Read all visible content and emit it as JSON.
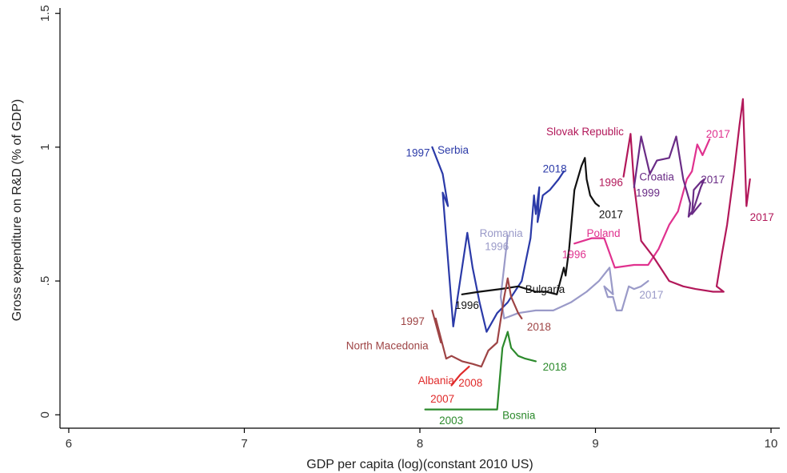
{
  "chart_data": {
    "type": "line",
    "xlabel": "GDP per capita (log)(constant 2010 US)",
    "ylabel": "Gross expenditure on R&D (% of GDP)",
    "xlim": [
      5.95,
      10.05
    ],
    "ylim": [
      -0.05,
      1.52
    ],
    "xticks": [
      {
        "value": 6,
        "label": "6"
      },
      {
        "value": 7,
        "label": "7"
      },
      {
        "value": 8,
        "label": "8"
      },
      {
        "value": 9,
        "label": "9"
      },
      {
        "value": 10,
        "label": "10"
      }
    ],
    "yticks": [
      {
        "value": 0,
        "label": "0"
      },
      {
        "value": 0.5,
        "label": ".5"
      },
      {
        "value": 1,
        "label": "1"
      },
      {
        "value": 1.5,
        "label": "1.5"
      }
    ],
    "grid": false,
    "legend": "none",
    "series": [
      {
        "name": "Serbia",
        "color": "#2b3aa8",
        "x": [
          8.07,
          8.13,
          8.16,
          8.13,
          8.19,
          8.27,
          8.3,
          8.34,
          8.38,
          8.44,
          8.5,
          8.58,
          8.63,
          8.65,
          8.66,
          8.68,
          8.67,
          8.7,
          8.74,
          8.79,
          8.82
        ],
        "y": [
          1.0,
          0.9,
          0.78,
          0.83,
          0.33,
          0.68,
          0.55,
          0.42,
          0.31,
          0.38,
          0.42,
          0.5,
          0.66,
          0.82,
          0.75,
          0.85,
          0.72,
          0.82,
          0.84,
          0.88,
          0.91
        ]
      },
      {
        "name": "Romania",
        "color": "#9a9ac8",
        "x": [
          8.5,
          8.46,
          8.48,
          8.56,
          8.66,
          8.76,
          8.86,
          8.95,
          9.02,
          9.08,
          9.1,
          9.05,
          9.07,
          9.1,
          9.12,
          9.15,
          9.19,
          9.22,
          9.26,
          9.3
        ],
        "y": [
          0.67,
          0.44,
          0.36,
          0.38,
          0.39,
          0.39,
          0.42,
          0.46,
          0.5,
          0.55,
          0.45,
          0.48,
          0.44,
          0.44,
          0.39,
          0.39,
          0.48,
          0.47,
          0.48,
          0.5
        ]
      },
      {
        "name": "Bulgaria",
        "color": "#111111",
        "x": [
          8.24,
          8.34,
          8.46,
          8.56,
          8.66,
          8.72,
          8.78,
          8.82,
          8.83,
          8.85,
          8.88,
          8.92,
          8.94,
          8.95,
          8.97,
          9.0,
          9.02
        ],
        "y": [
          0.45,
          0.46,
          0.47,
          0.48,
          0.46,
          0.46,
          0.45,
          0.55,
          0.52,
          0.62,
          0.84,
          0.93,
          0.96,
          0.88,
          0.82,
          0.79,
          0.78
        ]
      },
      {
        "name": "North Macedonia",
        "color": "#9e4445",
        "x": [
          8.07,
          8.12,
          8.09,
          8.15,
          8.18,
          8.24,
          8.3,
          8.35,
          8.39,
          8.44,
          8.48,
          8.5,
          8.52,
          8.56,
          8.58
        ],
        "y": [
          0.39,
          0.27,
          0.36,
          0.21,
          0.22,
          0.2,
          0.19,
          0.18,
          0.24,
          0.27,
          0.44,
          0.51,
          0.44,
          0.38,
          0.36
        ]
      },
      {
        "name": "Bosnia",
        "color": "#2c8a2c",
        "x": [
          8.03,
          8.18,
          8.28,
          8.38,
          8.44,
          8.47,
          8.5,
          8.52,
          8.56,
          8.6,
          8.66
        ],
        "y": [
          0.02,
          0.02,
          0.02,
          0.02,
          0.02,
          0.25,
          0.31,
          0.25,
          0.22,
          0.21,
          0.2
        ]
      },
      {
        "name": "Albania",
        "color": "#e02a2a",
        "x": [
          8.18,
          8.23,
          8.28
        ],
        "y": [
          0.11,
          0.15,
          0.18
        ]
      },
      {
        "name": "Poland",
        "color": "#e0328f",
        "x": [
          8.88,
          8.98,
          9.05,
          9.11,
          9.22,
          9.3,
          9.36,
          9.42,
          9.47,
          9.52,
          9.55,
          9.58,
          9.61,
          9.65
        ],
        "y": [
          0.64,
          0.66,
          0.66,
          0.55,
          0.56,
          0.56,
          0.62,
          0.71,
          0.76,
          0.88,
          0.91,
          1.01,
          0.97,
          1.03
        ]
      },
      {
        "name": "Slovak Republic",
        "color": "#b2185a",
        "x": [
          9.16,
          9.2,
          9.22,
          9.26,
          9.33,
          9.42,
          9.5,
          9.57,
          9.67,
          9.73,
          9.69,
          9.72,
          9.75,
          9.79,
          9.82,
          9.84,
          9.86,
          9.88
        ],
        "y": [
          0.89,
          1.05,
          0.86,
          0.65,
          0.59,
          0.5,
          0.48,
          0.47,
          0.46,
          0.46,
          0.48,
          0.6,
          0.71,
          0.91,
          1.08,
          1.18,
          0.78,
          0.88
        ]
      },
      {
        "name": "Croatia",
        "color": "#6a2c86",
        "x": [
          9.22,
          9.26,
          9.31,
          9.35,
          9.42,
          9.46,
          9.5,
          9.54,
          9.53,
          9.56,
          9.6,
          9.62,
          9.6,
          9.56,
          9.55,
          9.6
        ],
        "y": [
          0.85,
          1.04,
          0.9,
          0.95,
          0.96,
          1.04,
          0.88,
          0.79,
          0.74,
          0.77,
          0.85,
          0.88,
          0.87,
          0.84,
          0.75,
          0.79
        ]
      }
    ],
    "annotations": [
      {
        "text": "Serbia",
        "x": 8.1,
        "y": 0.99,
        "color": "#2b3aa8"
      },
      {
        "text": "1997",
        "x": 7.92,
        "y": 0.98,
        "color": "#2b3aa8"
      },
      {
        "text": "2018",
        "x": 8.7,
        "y": 0.92,
        "color": "#2b3aa8"
      },
      {
        "text": "Romania",
        "x": 8.34,
        "y": 0.68,
        "color": "#9a9ac8"
      },
      {
        "text": "1996",
        "x": 8.37,
        "y": 0.63,
        "color": "#9a9ac8"
      },
      {
        "text": "2017",
        "x": 9.25,
        "y": 0.45,
        "color": "#9a9ac8"
      },
      {
        "text": "Bulgaria",
        "x": 8.6,
        "y": 0.47,
        "color": "#111111"
      },
      {
        "text": "1996",
        "x": 8.2,
        "y": 0.41,
        "color": "#111111"
      },
      {
        "text": "2017",
        "x": 9.02,
        "y": 0.75,
        "color": "#111111"
      },
      {
        "text": "1997",
        "x": 7.89,
        "y": 0.35,
        "color": "#9e4445"
      },
      {
        "text": "North Macedonia",
        "x": 7.58,
        "y": 0.26,
        "color": "#9e4445"
      },
      {
        "text": "2018",
        "x": 8.61,
        "y": 0.33,
        "color": "#9e4445"
      },
      {
        "text": "Albania",
        "x": 7.99,
        "y": 0.13,
        "color": "#e02a2a"
      },
      {
        "text": "2008",
        "x": 8.22,
        "y": 0.12,
        "color": "#e02a2a"
      },
      {
        "text": "2007",
        "x": 8.06,
        "y": 0.06,
        "color": "#e02a2a"
      },
      {
        "text": "Bosnia",
        "x": 8.47,
        "y": 0.0,
        "color": "#2c8a2c"
      },
      {
        "text": "2003",
        "x": 8.11,
        "y": -0.02,
        "color": "#2c8a2c"
      },
      {
        "text": "2018",
        "x": 8.7,
        "y": 0.18,
        "color": "#2c8a2c"
      },
      {
        "text": "Poland",
        "x": 8.95,
        "y": 0.68,
        "color": "#e0328f"
      },
      {
        "text": "1996",
        "x": 8.81,
        "y": 0.6,
        "color": "#e0328f"
      },
      {
        "text": "2017",
        "x": 9.63,
        "y": 1.05,
        "color": "#e0328f"
      },
      {
        "text": "Slovak Republic",
        "x": 8.72,
        "y": 1.06,
        "color": "#b2185a"
      },
      {
        "text": "1996",
        "x": 9.02,
        "y": 0.87,
        "color": "#b2185a"
      },
      {
        "text": "2017",
        "x": 9.88,
        "y": 0.74,
        "color": "#b2185a"
      },
      {
        "text": "Croatia",
        "x": 9.25,
        "y": 0.89,
        "color": "#6a2c86"
      },
      {
        "text": "1999",
        "x": 9.23,
        "y": 0.83,
        "color": "#6a2c86"
      },
      {
        "text": "2017",
        "x": 9.6,
        "y": 0.88,
        "color": "#6a2c86"
      }
    ]
  }
}
